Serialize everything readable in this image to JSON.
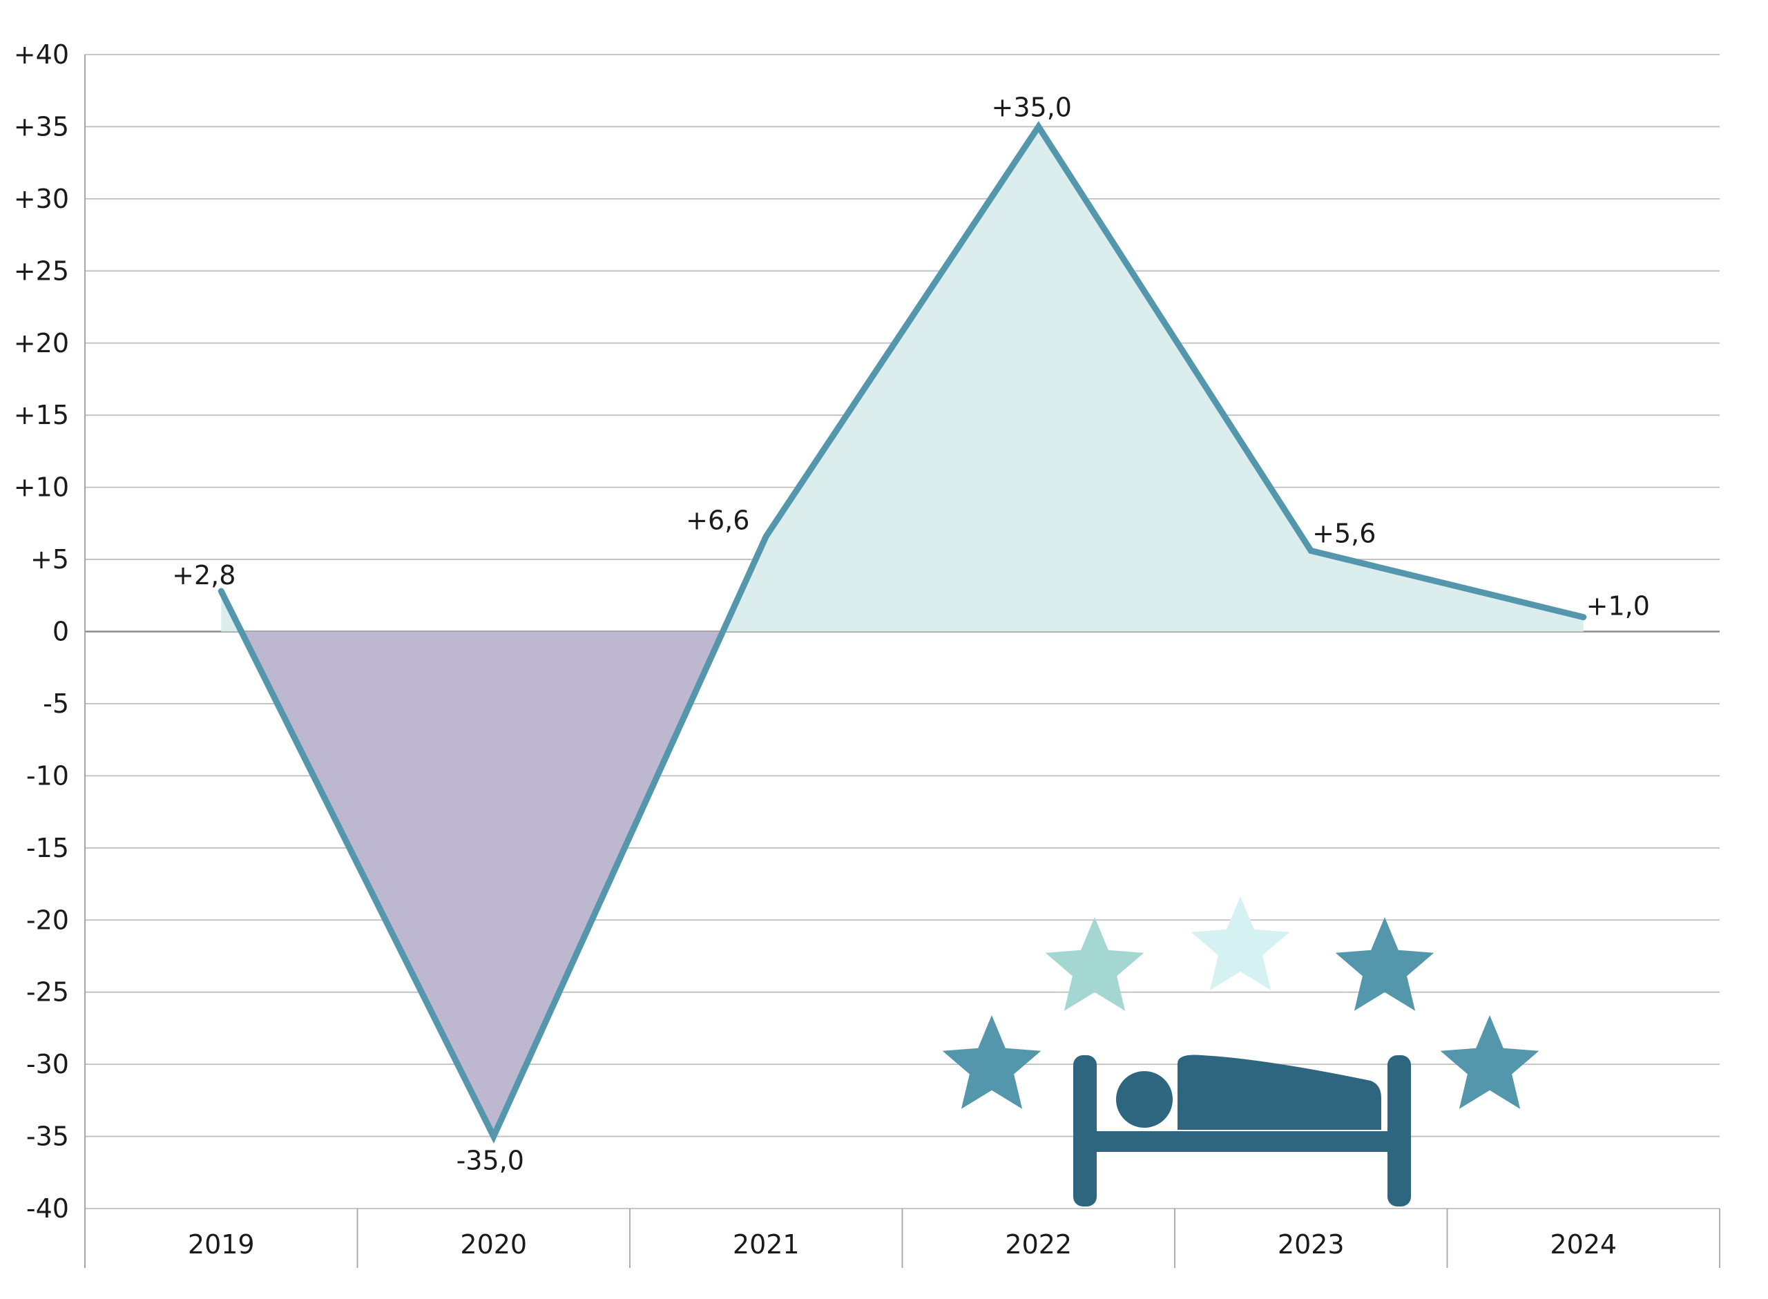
{
  "chart_data": {
    "type": "line",
    "categories": [
      "2019",
      "2020",
      "2021",
      "2022",
      "2023",
      "2024"
    ],
    "series": [
      {
        "values": [
          2.8,
          -35.0,
          6.6,
          35.0,
          5.6,
          1.0
        ]
      }
    ],
    "data_labels": [
      "+2,8",
      "-35,0",
      "+6,6",
      "+35,0",
      "+5,6",
      "+1,0"
    ],
    "y_ticks": [
      40,
      35,
      30,
      25,
      20,
      15,
      10,
      5,
      0,
      -5,
      -10,
      -15,
      -20,
      -25,
      -30,
      -35,
      -40
    ],
    "y_tick_labels": [
      "+40",
      "+35",
      "+30",
      "+25",
      "+20",
      "+15",
      "+10",
      "+5",
      "0",
      "-5",
      "-10",
      "-15",
      "-20",
      "-25",
      "-30",
      "-35",
      "-40"
    ],
    "ylim": [
      -40,
      40
    ],
    "grid": true,
    "area_fill": {
      "positive": "#dbeeed",
      "negative": "#bdb8d0"
    },
    "colors": {
      "line": "#5497ad",
      "grid": "#bfbfbf",
      "zero_line": "#8c8c8c",
      "axis": "#a6a6a6"
    }
  },
  "illustration": {
    "icon": "sleeping-person-bed-icon",
    "stars": "star-icon",
    "colors": {
      "bed": "#2e6680",
      "star_dark": "#5497ad",
      "star_mid": "#a4d7d2",
      "star_light": "#d5f1f1"
    }
  }
}
